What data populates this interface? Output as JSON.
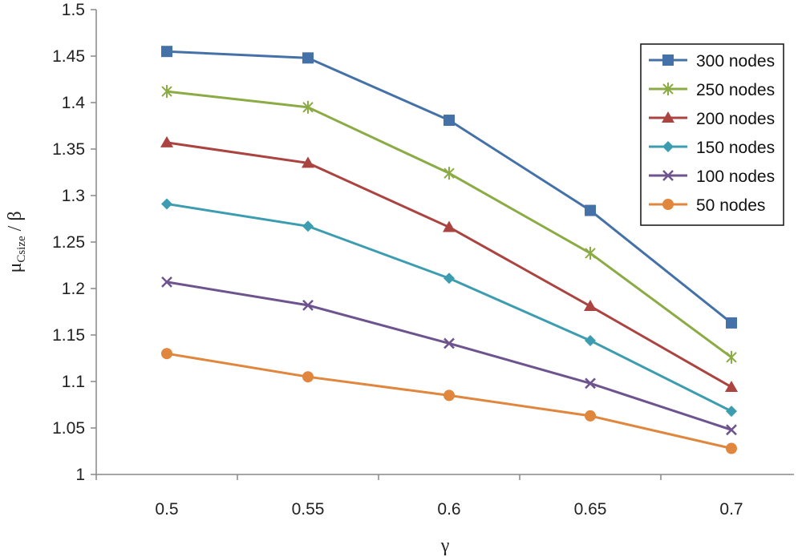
{
  "chart_data": {
    "type": "line",
    "title": "",
    "xlabel": "γ",
    "ylabel_main": "μ",
    "ylabel_sub": "Csize",
    "ylabel_tail": " / β",
    "x": [
      0.5,
      0.55,
      0.6,
      0.65,
      0.7
    ],
    "x_tick_labels": [
      "0.5",
      "0.55",
      "0.6",
      "0.65",
      "0.7"
    ],
    "ylim": [
      1,
      1.5
    ],
    "y_ticks": [
      1,
      1.05,
      1.1,
      1.15,
      1.2,
      1.25,
      1.3,
      1.35,
      1.4,
      1.45,
      1.5
    ],
    "y_tick_labels": [
      "1",
      "1.05",
      "1.1",
      "1.15",
      "1.2",
      "1.25",
      "1.3",
      "1.35",
      "1.4",
      "1.45",
      "1.5"
    ],
    "grid": false,
    "legend_position": "top-right",
    "series": [
      {
        "name": "300 nodes",
        "color": "#4472a8",
        "marker": "square",
        "values": [
          1.455,
          1.448,
          1.381,
          1.284,
          1.163
        ]
      },
      {
        "name": "250 nodes",
        "color": "#8bab45",
        "marker": "asterisk",
        "values": [
          1.412,
          1.395,
          1.324,
          1.238,
          1.126
        ]
      },
      {
        "name": "200 nodes",
        "color": "#ab4441",
        "marker": "triangle",
        "values": [
          1.357,
          1.335,
          1.266,
          1.181,
          1.094
        ]
      },
      {
        "name": "150 nodes",
        "color": "#3d9db0",
        "marker": "diamond",
        "values": [
          1.291,
          1.267,
          1.211,
          1.144,
          1.068
        ]
      },
      {
        "name": "100 nodes",
        "color": "#6e548f",
        "marker": "x",
        "values": [
          1.207,
          1.182,
          1.141,
          1.098,
          1.048
        ]
      },
      {
        "name": "50 nodes",
        "color": "#e0863d",
        "marker": "circle",
        "values": [
          1.13,
          1.105,
          1.085,
          1.063,
          1.028
        ]
      }
    ]
  }
}
